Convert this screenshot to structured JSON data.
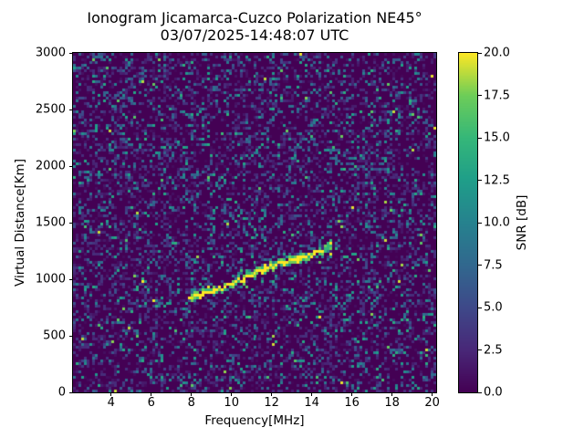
{
  "chart_data": {
    "type": "heatmap",
    "title": "Ionogram Jicamarca-Cuzco Polarization NE45°",
    "subtitle": "03/07/2025-14:48:07 UTC",
    "xlabel": "Frequency[MHz]",
    "ylabel": "Virtual Distance[Km]",
    "xlim": [
      2.1,
      20.2
    ],
    "ylim": [
      0,
      3000
    ],
    "xticks": [
      4,
      6,
      8,
      10,
      12,
      14,
      16,
      18,
      20
    ],
    "yticks": [
      0,
      500,
      1000,
      1500,
      2000,
      2500,
      3000
    ],
    "grid": false,
    "figure_background": "#ffffff",
    "text_color": "#000000",
    "colorbar": {
      "label": "SNR [dB]",
      "min": 0,
      "max": 20,
      "ticks": [
        "0.0",
        "2.5",
        "5.0",
        "7.5",
        "10.0",
        "12.5",
        "15.0",
        "17.5",
        "20.0"
      ],
      "colormap": "viridis",
      "stops": [
        "#440154",
        "#482878",
        "#3e4989",
        "#31688e",
        "#26828e",
        "#1f9e89",
        "#35b779",
        "#6dcd59",
        "#fde725"
      ]
    },
    "background_snr_db": 0,
    "noise_speckle_snr_db": [
      1,
      12
    ],
    "series": [
      {
        "name": "ionospheric-echo-trace",
        "peak_snr_db": 20,
        "fade_range_mhz": [
          14.45,
          14.85
        ],
        "points_mhz_km": [
          [
            7.9,
            835
          ],
          [
            8.2,
            855
          ],
          [
            8.6,
            880
          ],
          [
            9.1,
            905
          ],
          [
            9.6,
            930
          ],
          [
            10.0,
            960
          ],
          [
            10.5,
            990
          ],
          [
            10.85,
            1025
          ],
          [
            11.2,
            1055
          ],
          [
            11.65,
            1090
          ],
          [
            12.1,
            1120
          ],
          [
            12.5,
            1145
          ],
          [
            13.0,
            1170
          ],
          [
            13.5,
            1190
          ],
          [
            13.9,
            1210
          ],
          [
            14.35,
            1235
          ],
          [
            14.6,
            1250
          ],
          [
            14.75,
            1270
          ],
          [
            14.9,
            1300
          ],
          [
            15.0,
            1335
          ]
        ]
      }
    ]
  }
}
